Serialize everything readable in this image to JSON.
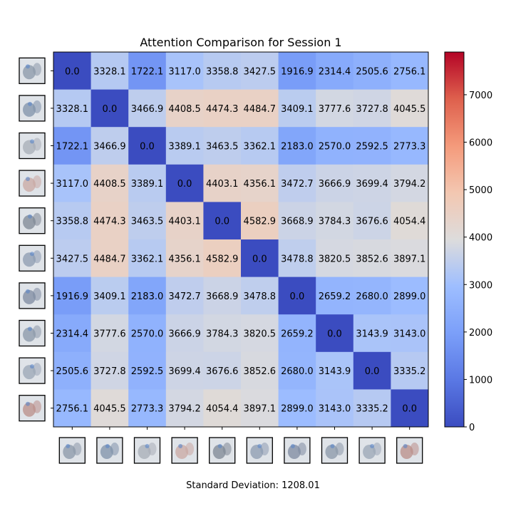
{
  "chart_data": {
    "type": "heatmap",
    "title": "Attention Comparison for Session 1",
    "footer": "Standard Deviation: 1208.01",
    "colormap": "coolwarm",
    "vmin": 0,
    "vmax": 7900,
    "colorbar_ticks": [
      "0",
      "1000",
      "2000",
      "3000",
      "4000",
      "5000",
      "6000",
      "7000"
    ],
    "thumbnails": [
      {
        "name": "thumb-1",
        "tint": "#8a97a8"
      },
      {
        "name": "thumb-2",
        "tint": "#7f91aa"
      },
      {
        "name": "thumb-3",
        "tint": "#a7adb7"
      },
      {
        "name": "thumb-4",
        "tint": "#c9a8a3"
      },
      {
        "name": "thumb-5",
        "tint": "#7e8794"
      },
      {
        "name": "thumb-6",
        "tint": "#8c9bb0"
      },
      {
        "name": "thumb-7",
        "tint": "#7d8aa0"
      },
      {
        "name": "thumb-8",
        "tint": "#8a97a8"
      },
      {
        "name": "thumb-9",
        "tint": "#9aa6b6"
      },
      {
        "name": "thumb-10",
        "tint": "#b98e88"
      }
    ],
    "matrix": [
      [
        "0.0",
        "3328.1",
        "1722.1",
        "3117.0",
        "3358.8",
        "3427.5",
        "1916.9",
        "2314.4",
        "2505.6",
        "2756.1"
      ],
      [
        "3328.1",
        "0.0",
        "3466.9",
        "4408.5",
        "4474.3",
        "4484.7",
        "3409.1",
        "3777.6",
        "3727.8",
        "4045.5"
      ],
      [
        "1722.1",
        "3466.9",
        "0.0",
        "3389.1",
        "3463.5",
        "3362.1",
        "2183.0",
        "2570.0",
        "2592.5",
        "2773.3"
      ],
      [
        "3117.0",
        "4408.5",
        "3389.1",
        "0.0",
        "4403.1",
        "4356.1",
        "3472.7",
        "3666.9",
        "3699.4",
        "3794.2"
      ],
      [
        "3358.8",
        "4474.3",
        "3463.5",
        "4403.1",
        "0.0",
        "4582.9",
        "3668.9",
        "3784.3",
        "3676.6",
        "4054.4"
      ],
      [
        "3427.5",
        "4484.7",
        "3362.1",
        "4356.1",
        "4582.9",
        "0.0",
        "3478.8",
        "3820.5",
        "3852.6",
        "3897.1"
      ],
      [
        "1916.9",
        "3409.1",
        "2183.0",
        "3472.7",
        "3668.9",
        "3478.8",
        "0.0",
        "2659.2",
        "2680.0",
        "2899.0"
      ],
      [
        "2314.4",
        "3777.6",
        "2570.0",
        "3666.9",
        "3784.3",
        "3820.5",
        "2659.2",
        "0.0",
        "3143.9",
        "3143.0"
      ],
      [
        "2505.6",
        "3727.8",
        "2592.5",
        "3699.4",
        "3676.6",
        "3852.6",
        "2680.0",
        "3143.9",
        "0.0",
        "3335.2"
      ],
      [
        "2756.1",
        "4045.5",
        "2773.3",
        "3794.2",
        "4054.4",
        "3897.1",
        "2899.0",
        "3143.0",
        "3335.2",
        "0.0"
      ]
    ]
  }
}
